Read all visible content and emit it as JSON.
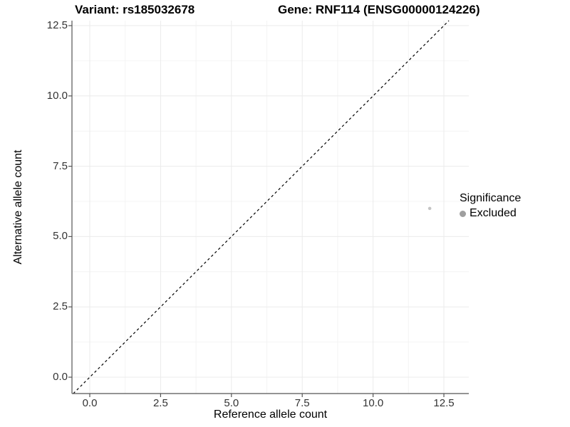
{
  "header": {
    "variant_title": "Variant: rs185032678",
    "gene_title": "Gene: RNF114 (ENSG00000124226)"
  },
  "chart_data": {
    "type": "scatter",
    "title_left": "Variant: rs185032678",
    "title_right": "Gene: RNF114 (ENSG00000124226)",
    "xlabel": "Reference allele count",
    "ylabel": "Alternative allele count",
    "x_ticks": {
      "values": [
        0,
        2.5,
        5,
        7.5,
        10,
        12.5
      ],
      "labels": [
        "0.0",
        "2.5",
        "5.0",
        "7.5",
        "10.0",
        "12.5"
      ]
    },
    "y_ticks": {
      "values": [
        0,
        2.5,
        5,
        7.5,
        10,
        12.5
      ],
      "labels": [
        "0.0",
        "2.5",
        "5.0",
        "7.5",
        "10.0",
        "12.5"
      ]
    },
    "xlim": [
      -0.63,
      13.38
    ],
    "ylim": [
      -0.58,
      12.68
    ],
    "grid": "major+minor",
    "series": [
      {
        "name": "Excluded",
        "color": "#c4c4c4",
        "points": [
          {
            "x": 12,
            "y": 6
          }
        ]
      }
    ],
    "reference_line": {
      "type": "identity",
      "slope": 1,
      "intercept": 0,
      "linetype": "dashed",
      "color": "#000000"
    },
    "legend": {
      "title": "Significance",
      "position": "right",
      "items": [
        {
          "label": "Excluded",
          "color": "#9f9f9f"
        }
      ]
    },
    "colors": {
      "major_grid": "#ebebeb",
      "minor_grid": "#f4f4f4",
      "axis_line": "#555555",
      "tick_text": "#333333"
    }
  }
}
